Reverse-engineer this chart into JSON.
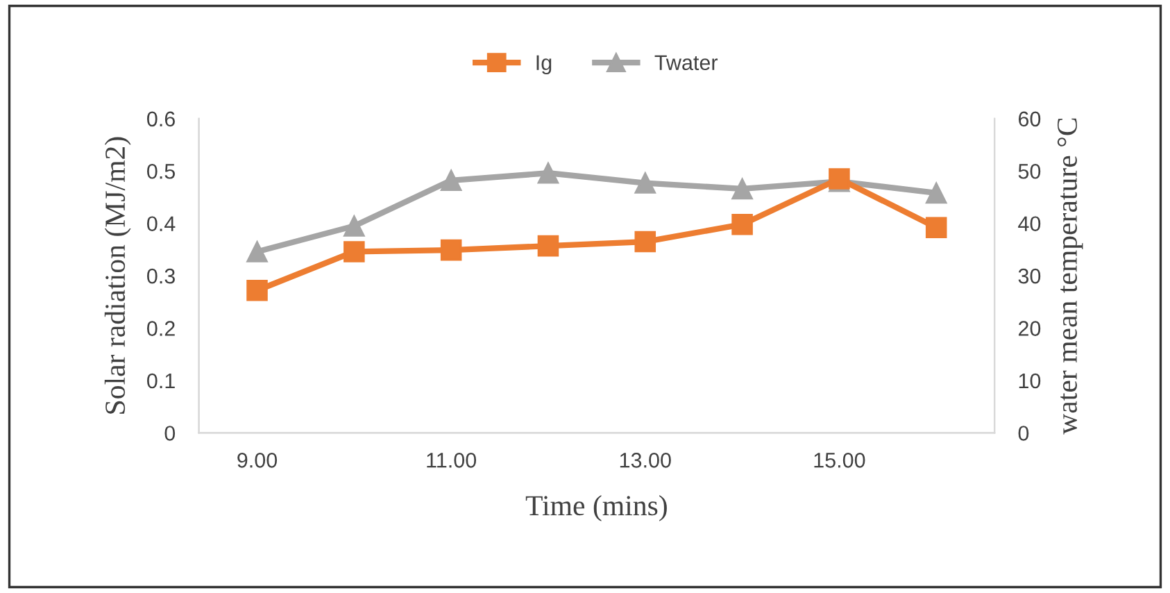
{
  "chart_data": {
    "type": "line",
    "xlabel": "Time (mins)",
    "ylabel": "Solar radiation (MJ/m2)",
    "y2label": "water mean temperature °C",
    "categories": [
      "9.00",
      null,
      "11.00",
      null,
      "13.00",
      null,
      "15.00",
      null
    ],
    "series": [
      {
        "name": "Ig",
        "color": "#ed7d31",
        "marker": "square",
        "values": [
          0.272,
          0.346,
          0.349,
          0.357,
          0.365,
          0.398,
          0.485,
          0.392
        ]
      },
      {
        "name": "Twater",
        "color": "#a5a5a5",
        "marker": "triangle",
        "axis": "y2",
        "values": [
          34.6,
          39.5,
          48.2,
          49.6,
          47.7,
          46.6,
          48.0,
          45.8
        ]
      }
    ],
    "ylim": [
      0,
      0.6
    ],
    "yticks": [
      0,
      0.1,
      0.2,
      0.3,
      0.4,
      0.5,
      0.6
    ],
    "y2lim": [
      0,
      60
    ],
    "y2ticks": [
      0,
      10,
      20,
      30,
      40,
      50,
      60
    ],
    "grid": false,
    "legend": "top",
    "line_style": "solid"
  }
}
